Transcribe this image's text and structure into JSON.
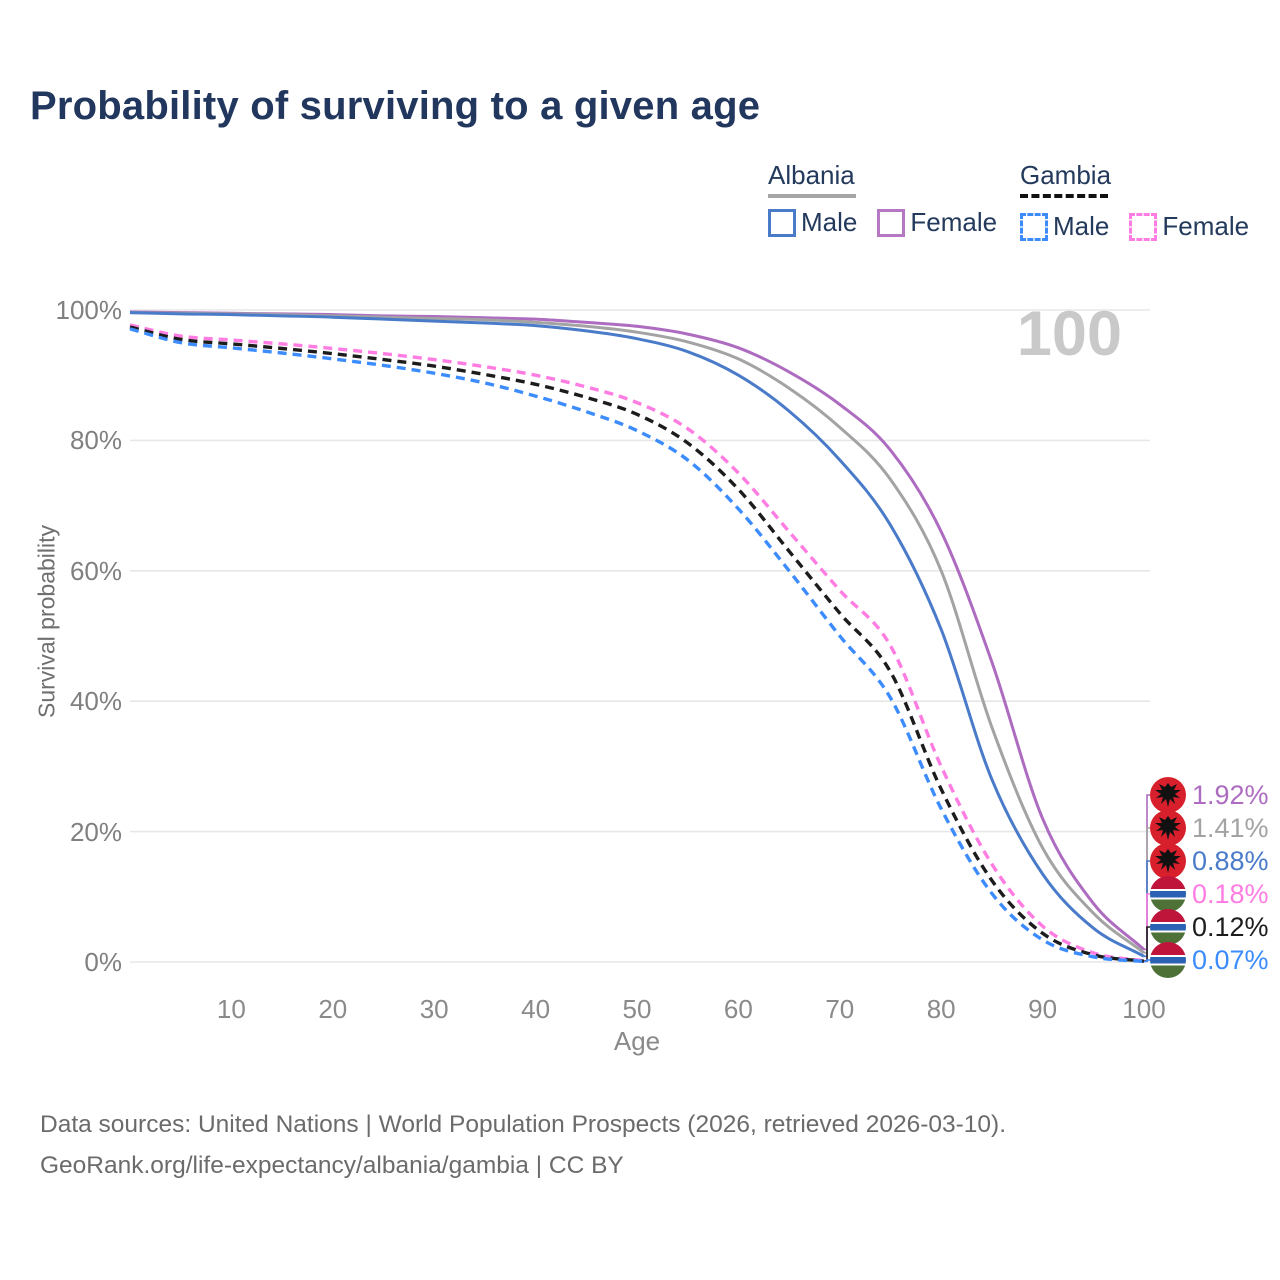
{
  "title": "Probability of surviving to a given age",
  "watermark": "100",
  "legend": {
    "position": "top-right",
    "groups": [
      {
        "name": "Albania",
        "line_style": "solid",
        "underline_color": "#a6a6a6",
        "items": [
          {
            "label": "Male",
            "color": "#4a7bc9"
          },
          {
            "label": "Female",
            "color": "#b678c2"
          }
        ]
      },
      {
        "name": "Gambia",
        "line_style": "dashed",
        "underline_color": "#111111",
        "items": [
          {
            "label": "Male",
            "color": "#3d8cfe"
          },
          {
            "label": "Female",
            "color": "#ff7de2"
          }
        ]
      }
    ]
  },
  "axes": {
    "y": {
      "title": "Survival probability",
      "tick_labels": [
        "100%",
        "80%",
        "60%",
        "40%",
        "20%",
        "0%"
      ],
      "tick_values": [
        100,
        80,
        60,
        40,
        20,
        0
      ],
      "range": [
        0,
        100
      ],
      "grid": true
    },
    "x": {
      "title": "Age",
      "tick_values": [
        10,
        20,
        30,
        40,
        50,
        60,
        70,
        80,
        90,
        100
      ],
      "range": [
        0,
        100
      ],
      "grid": false
    }
  },
  "chart_data": {
    "type": "line",
    "title": "Probability of surviving to a given age",
    "xlabel": "Age",
    "ylabel": "Survival probability",
    "ylim": [
      0,
      100
    ],
    "xlim": [
      0,
      100
    ],
    "x": [
      0,
      5,
      10,
      15,
      20,
      25,
      30,
      35,
      40,
      45,
      50,
      55,
      60,
      65,
      70,
      75,
      80,
      85,
      90,
      95,
      100
    ],
    "series": [
      {
        "name": "Albania Female",
        "country": "Albania",
        "sex": "Female",
        "style": "solid",
        "color": "#ad6cc0",
        "flag": "albania",
        "final_label": "1.92%",
        "values": [
          99.7,
          99.6,
          99.5,
          99.4,
          99.3,
          99.1,
          99.0,
          98.8,
          98.6,
          98.1,
          97.5,
          96.3,
          94.2,
          90.5,
          85.5,
          78.5,
          66.0,
          46.0,
          22.0,
          9.0,
          1.92
        ]
      },
      {
        "name": "Albania Both sexes",
        "country": "Albania",
        "sex": "Both",
        "style": "solid",
        "color": "#a3a3a3",
        "flag": "albania",
        "final_label": "1.41%",
        "values": [
          99.6,
          99.5,
          99.4,
          99.3,
          99.1,
          98.9,
          98.7,
          98.5,
          98.1,
          97.5,
          96.6,
          95.1,
          92.5,
          88.0,
          82.0,
          74.0,
          60.0,
          36.0,
          17.5,
          7.5,
          1.41
        ]
      },
      {
        "name": "Albania Male",
        "country": "Albania",
        "sex": "Male",
        "style": "solid",
        "color": "#4a7bc9",
        "flag": "albania",
        "final_label": "0.88%",
        "values": [
          99.6,
          99.4,
          99.3,
          99.1,
          98.9,
          98.6,
          98.3,
          98.0,
          97.6,
          96.8,
          95.6,
          93.6,
          90.0,
          84.5,
          77.0,
          67.0,
          51.0,
          28.0,
          13.5,
          5.2,
          0.88
        ]
      },
      {
        "name": "Gambia Female",
        "country": "Gambia",
        "sex": "Female",
        "style": "dashed",
        "color": "#ff7de2",
        "flag": "gambia",
        "final_label": "0.18%",
        "values": [
          97.7,
          96.0,
          95.4,
          94.8,
          94.1,
          93.3,
          92.4,
          91.3,
          90.0,
          88.2,
          85.8,
          81.8,
          75.0,
          66.0,
          57.0,
          48.5,
          30.0,
          15.0,
          5.5,
          1.4,
          0.18
        ]
      },
      {
        "name": "Gambia Both sexes",
        "country": "Gambia",
        "sex": "Both",
        "style": "dashed",
        "color": "#1c1c1c",
        "flag": "gambia",
        "final_label": "0.12%",
        "values": [
          97.4,
          95.5,
          94.8,
          94.1,
          93.3,
          92.4,
          91.4,
          90.1,
          88.6,
          86.6,
          84.0,
          79.6,
          72.5,
          63.0,
          53.5,
          44.5,
          26.5,
          12.5,
          4.4,
          1.1,
          0.12
        ]
      },
      {
        "name": "Gambia Male",
        "country": "Gambia",
        "sex": "Male",
        "style": "dashed",
        "color": "#3d8cfe",
        "flag": "gambia",
        "final_label": "0.07%",
        "values": [
          97.1,
          95.0,
          94.2,
          93.4,
          92.5,
          91.5,
          90.3,
          88.8,
          86.8,
          84.4,
          81.5,
          77.0,
          69.5,
          60.0,
          50.0,
          40.5,
          23.5,
          10.5,
          3.4,
          0.8,
          0.07
        ]
      }
    ]
  },
  "flag_colors": {
    "albania_red": "#d8202c",
    "albania_eagle": "#111111",
    "gambia_red": "#c0153a",
    "gambia_blue": "#2b62b4",
    "gambia_green": "#4d7137",
    "gambia_white": "#ffffff"
  },
  "footer": {
    "line1": "Data sources: United Nations | World Population Prospects (2026, retrieved 2026-03-10).",
    "line2": "GeoRank.org/life-expectancy/albania/gambia | CC BY"
  }
}
